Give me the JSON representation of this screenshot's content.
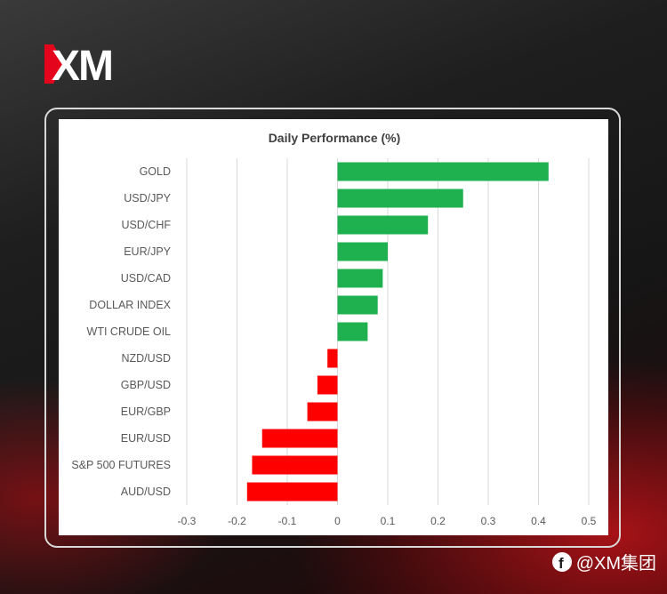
{
  "brand": {
    "logo_text": "XM",
    "accent_color": "#e4051c"
  },
  "footer": {
    "social_icon": "facebook-icon",
    "handle": "@XM集团"
  },
  "colors": {
    "positive": "#1fb04f",
    "negative": "#ff0000",
    "grid": "#d9d9d9",
    "text": "#595959"
  },
  "chart_data": {
    "type": "bar",
    "orientation": "horizontal",
    "title": "Daily Performance (%)",
    "categories": [
      "GOLD",
      "USD/JPY",
      "USD/CHF",
      "EUR/JPY",
      "USD/CAD",
      "DOLLAR INDEX",
      "WTI CRUDE OIL",
      "NZD/USD",
      "GBP/USD",
      "EUR/GBP",
      "EUR/USD",
      "S&P 500 FUTURES",
      "AUD/USD"
    ],
    "values": [
      0.42,
      0.25,
      0.18,
      0.1,
      0.09,
      0.08,
      0.06,
      -0.02,
      -0.04,
      -0.06,
      -0.15,
      -0.17,
      -0.18
    ],
    "xlim": [
      -0.3,
      0.5
    ],
    "xticks": [
      "-0.3",
      "-0.2",
      "-0.1",
      "0",
      "0.1",
      "0.2",
      "0.3",
      "0.4",
      "0.5"
    ],
    "grid": true,
    "legend": "none"
  }
}
